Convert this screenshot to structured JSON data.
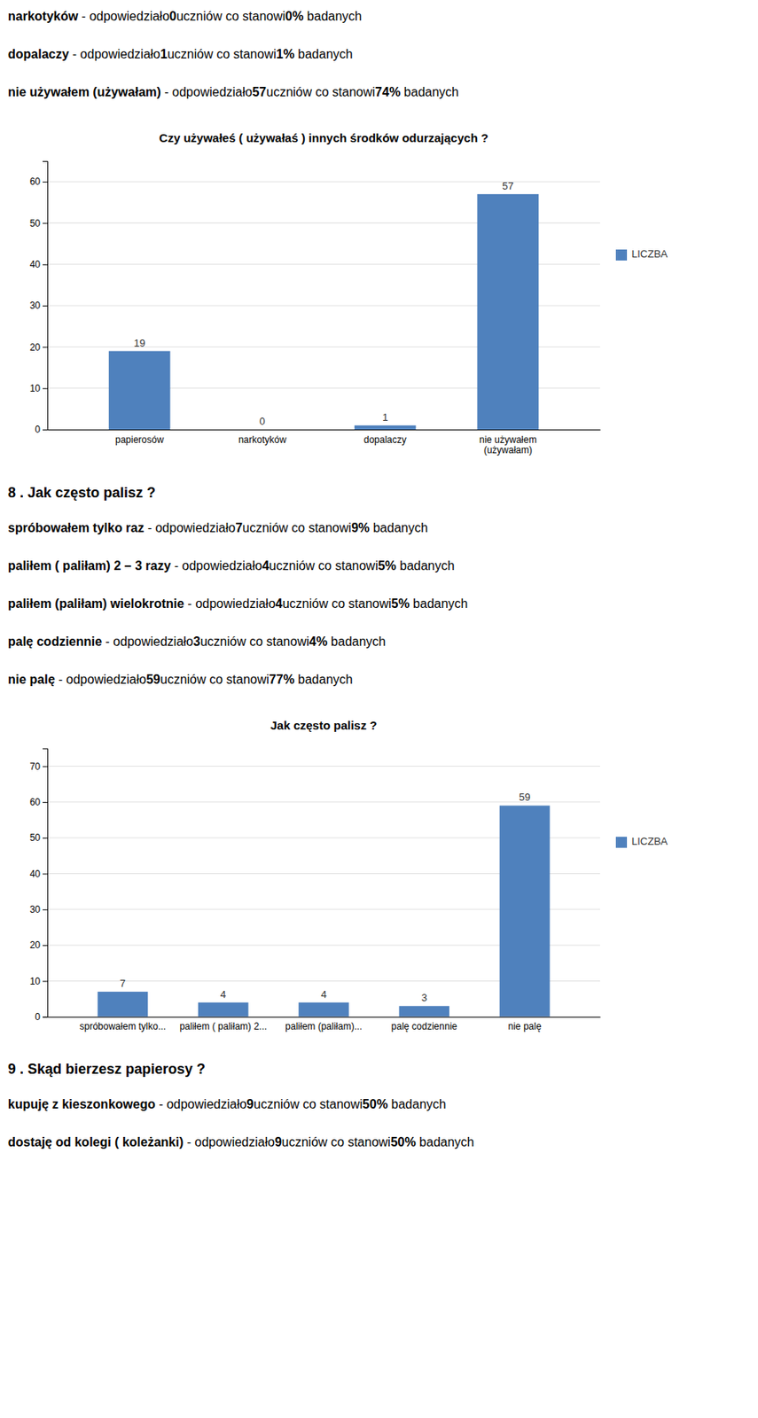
{
  "text_blocks": [
    {
      "lines": [
        [
          {
            "text": "narkotyków",
            "bold": true
          },
          {
            "text": " - odpowiedziało",
            "bold": false
          },
          {
            "text": "0",
            "bold": true
          },
          {
            "text": "uczniów co stanowi",
            "bold": false
          },
          {
            "text": "0%",
            "bold": true
          },
          {
            "text": " badanych",
            "bold": false
          }
        ],
        [
          {
            "text": "dopalaczy",
            "bold": true
          },
          {
            "text": " - odpowiedziało",
            "bold": false
          },
          {
            "text": "1",
            "bold": true
          },
          {
            "text": "uczniów co stanowi",
            "bold": false
          },
          {
            "text": "1%",
            "bold": true
          },
          {
            "text": " badanych",
            "bold": false
          }
        ],
        [
          {
            "text": "nie używałem (używałam)",
            "bold": true
          },
          {
            "text": " - odpowiedziało",
            "bold": false
          },
          {
            "text": "57",
            "bold": true
          },
          {
            "text": "uczniów co stanowi",
            "bold": false
          },
          {
            "text": "74%",
            "bold": true
          },
          {
            "text": " badanych",
            "bold": false
          }
        ]
      ]
    },
    {
      "heading": "8 . Jak często palisz ?",
      "lines": [
        [
          {
            "text": "spróbowałem tylko raz",
            "bold": true
          },
          {
            "text": " - odpowiedziało",
            "bold": false
          },
          {
            "text": "7",
            "bold": true
          },
          {
            "text": "uczniów co stanowi",
            "bold": false
          },
          {
            "text": "9%",
            "bold": true
          },
          {
            "text": " badanych",
            "bold": false
          }
        ],
        [
          {
            "text": "paliłem ( paliłam) 2 – 3 razy",
            "bold": true
          },
          {
            "text": " - odpowiedziało",
            "bold": false
          },
          {
            "text": "4",
            "bold": true
          },
          {
            "text": "uczniów co stanowi",
            "bold": false
          },
          {
            "text": "5%",
            "bold": true
          },
          {
            "text": " badanych",
            "bold": false
          }
        ],
        [
          {
            "text": "paliłem (paliłam) wielokrotnie",
            "bold": true
          },
          {
            "text": " - odpowiedziało",
            "bold": false
          },
          {
            "text": "4",
            "bold": true
          },
          {
            "text": "uczniów co stanowi",
            "bold": false
          },
          {
            "text": "5%",
            "bold": true
          },
          {
            "text": " badanych",
            "bold": false
          }
        ],
        [
          {
            "text": "palę codziennie",
            "bold": true
          },
          {
            "text": " - odpowiedziało",
            "bold": false
          },
          {
            "text": "3",
            "bold": true
          },
          {
            "text": "uczniów co stanowi",
            "bold": false
          },
          {
            "text": "4%",
            "bold": true
          },
          {
            "text": " badanych",
            "bold": false
          }
        ],
        [
          {
            "text": "nie palę",
            "bold": true
          },
          {
            "text": " - odpowiedziało",
            "bold": false
          },
          {
            "text": "59",
            "bold": true
          },
          {
            "text": "uczniów co stanowi",
            "bold": false
          },
          {
            "text": "77%",
            "bold": true
          },
          {
            "text": " badanych",
            "bold": false
          }
        ]
      ]
    },
    {
      "heading": "9 . Skąd bierzesz papierosy ?",
      "lines": [
        [
          {
            "text": "kupuję z kieszonkowego",
            "bold": true
          },
          {
            "text": " - odpowiedziało",
            "bold": false
          },
          {
            "text": "9",
            "bold": true
          },
          {
            "text": "uczniów co stanowi",
            "bold": false
          },
          {
            "text": "50%",
            "bold": true
          },
          {
            "text": " badanych",
            "bold": false
          }
        ],
        [
          {
            "text": "dostaję od kolegi ( koleżanki)",
            "bold": true
          },
          {
            "text": " - odpowiedziało",
            "bold": false
          },
          {
            "text": "9",
            "bold": true
          },
          {
            "text": "uczniów co stanowi",
            "bold": false
          },
          {
            "text": "50%",
            "bold": true
          },
          {
            "text": " badanych",
            "bold": false
          }
        ]
      ]
    }
  ],
  "chart_data": [
    {
      "type": "bar",
      "title": "Czy używałeś ( używałaś ) innych środków odurzających ?",
      "categories": [
        "papierosów",
        "narkotyków",
        "dopalaczy",
        "nie używałem\n(używałam)"
      ],
      "series": [
        {
          "name": "LICZBA",
          "color": "#4F81BD",
          "values": [
            19,
            0,
            1,
            57
          ]
        }
      ],
      "ylim": [
        0,
        65
      ],
      "yticks": [
        0,
        10,
        20,
        30,
        40,
        50,
        60
      ],
      "grid": true,
      "legend": "right",
      "data_labels": true
    },
    {
      "type": "bar",
      "title": "Jak często palisz ?",
      "categories": [
        "spróbowałem tylko...",
        "paliłem ( paliłam) 2...",
        "paliłem (paliłam)...",
        "palę codziennie",
        "nie palę"
      ],
      "series": [
        {
          "name": "LICZBA",
          "color": "#4F81BD",
          "values": [
            7,
            4,
            4,
            3,
            59
          ]
        }
      ],
      "ylim": [
        0,
        75
      ],
      "yticks": [
        0,
        10,
        20,
        30,
        40,
        50,
        60,
        70
      ],
      "grid": true,
      "legend": "right",
      "data_labels": true
    }
  ]
}
